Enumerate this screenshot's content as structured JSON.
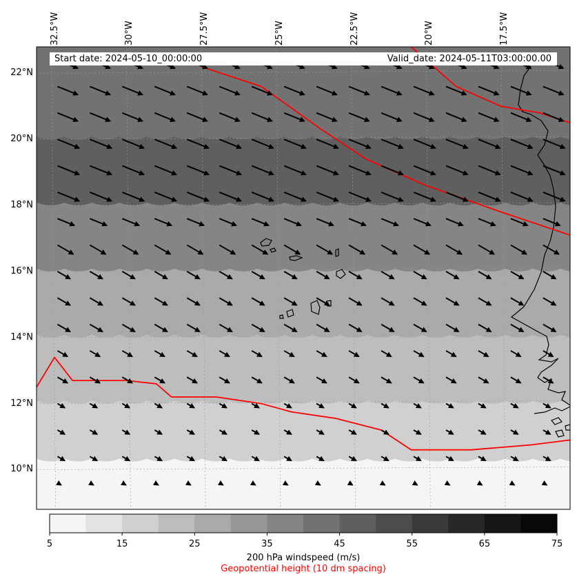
{
  "header": {
    "start_date": "Start date: 2024-05-10_00:00:00",
    "valid_date": "Valid_date: 2024-05-11T03:00:00.00"
  },
  "map": {
    "lon_min": -33.0,
    "lon_max": -15.2,
    "lat_min": 8.8,
    "lat_max": 22.8,
    "lon_ticks": [
      {
        "value": -32.5,
        "label": "32.5°W"
      },
      {
        "value": -30.0,
        "label": "30°W"
      },
      {
        "value": -27.5,
        "label": "27.5°W"
      },
      {
        "value": -25.0,
        "label": "25°W"
      },
      {
        "value": -22.5,
        "label": "22.5°W"
      },
      {
        "value": -20.0,
        "label": "20°W"
      },
      {
        "value": -17.5,
        "label": "17.5°W"
      }
    ],
    "lat_ticks": [
      {
        "value": 22,
        "label": "22°N"
      },
      {
        "value": 20,
        "label": "20°N"
      },
      {
        "value": 18,
        "label": "18°N"
      },
      {
        "value": 16,
        "label": "16°N"
      },
      {
        "value": 14,
        "label": "14°N"
      },
      {
        "value": 12,
        "label": "12°N"
      },
      {
        "value": 10,
        "label": "10°N"
      }
    ]
  },
  "colorbar": {
    "levels": [
      5,
      10,
      15,
      20,
      25,
      30,
      35,
      40,
      45,
      50,
      55,
      60,
      65,
      70,
      75
    ],
    "tick_labels": [
      "5",
      "15",
      "25",
      "35",
      "45",
      "55",
      "65",
      "75"
    ],
    "colors": [
      "#f5f5f5",
      "#e3e3e3",
      "#d0d0d0",
      "#bdbdbd",
      "#aaaaaa",
      "#979797",
      "#858585",
      "#727272",
      "#5f5f5f",
      "#4c4c4c",
      "#393939",
      "#272727",
      "#161616",
      "#080808"
    ],
    "label": "200 hPa windspeed (m/s)",
    "contour_label": "Geopotential height (10 dm spacing)",
    "contour_color": "#ff0000"
  },
  "chart_data": {
    "type": "heatmap",
    "title": "",
    "xlabel": "",
    "ylabel": "",
    "variable": "200 hPa windspeed (m/s)",
    "approx_windspeed_bands": [
      {
        "lat": 21,
        "windspeed": 42
      },
      {
        "lat": 19,
        "windspeed": 45
      },
      {
        "lat": 17,
        "windspeed": 35
      },
      {
        "lat": 15,
        "windspeed": 28
      },
      {
        "lat": 13,
        "windspeed": 22
      },
      {
        "lat": 11,
        "windspeed": 16
      },
      {
        "lat": 9.5,
        "windspeed": 8
      }
    ],
    "geopotential_contours": [
      {
        "points": [
          [
            -27.5,
            22.2
          ],
          [
            -25.5,
            21.6
          ],
          [
            -23.5,
            20.3
          ],
          [
            -22.0,
            19.4
          ],
          [
            -20.0,
            18.6
          ],
          [
            -17.5,
            17.8
          ],
          [
            -15.2,
            17.1
          ]
        ]
      },
      {
        "points": [
          [
            -20.5,
            22.8
          ],
          [
            -19.0,
            21.6
          ],
          [
            -17.5,
            21.0
          ],
          [
            -16.2,
            20.8
          ],
          [
            -15.2,
            20.5
          ]
        ]
      },
      {
        "points": [
          [
            -33.0,
            12.5
          ],
          [
            -32.4,
            13.4
          ],
          [
            -31.8,
            12.7
          ],
          [
            -30.0,
            12.7
          ],
          [
            -29.0,
            12.6
          ],
          [
            -28.5,
            12.2
          ],
          [
            -27.0,
            12.2
          ],
          [
            -25.5,
            12.0
          ],
          [
            -24.5,
            11.75
          ],
          [
            -23.0,
            11.55
          ],
          [
            -21.5,
            11.2
          ],
          [
            -20.5,
            10.6
          ],
          [
            -18.5,
            10.6
          ],
          [
            -16.5,
            10.75
          ],
          [
            -15.2,
            10.9
          ]
        ]
      }
    ],
    "wind_direction": "westerly to north-westerly, ~WNW"
  }
}
